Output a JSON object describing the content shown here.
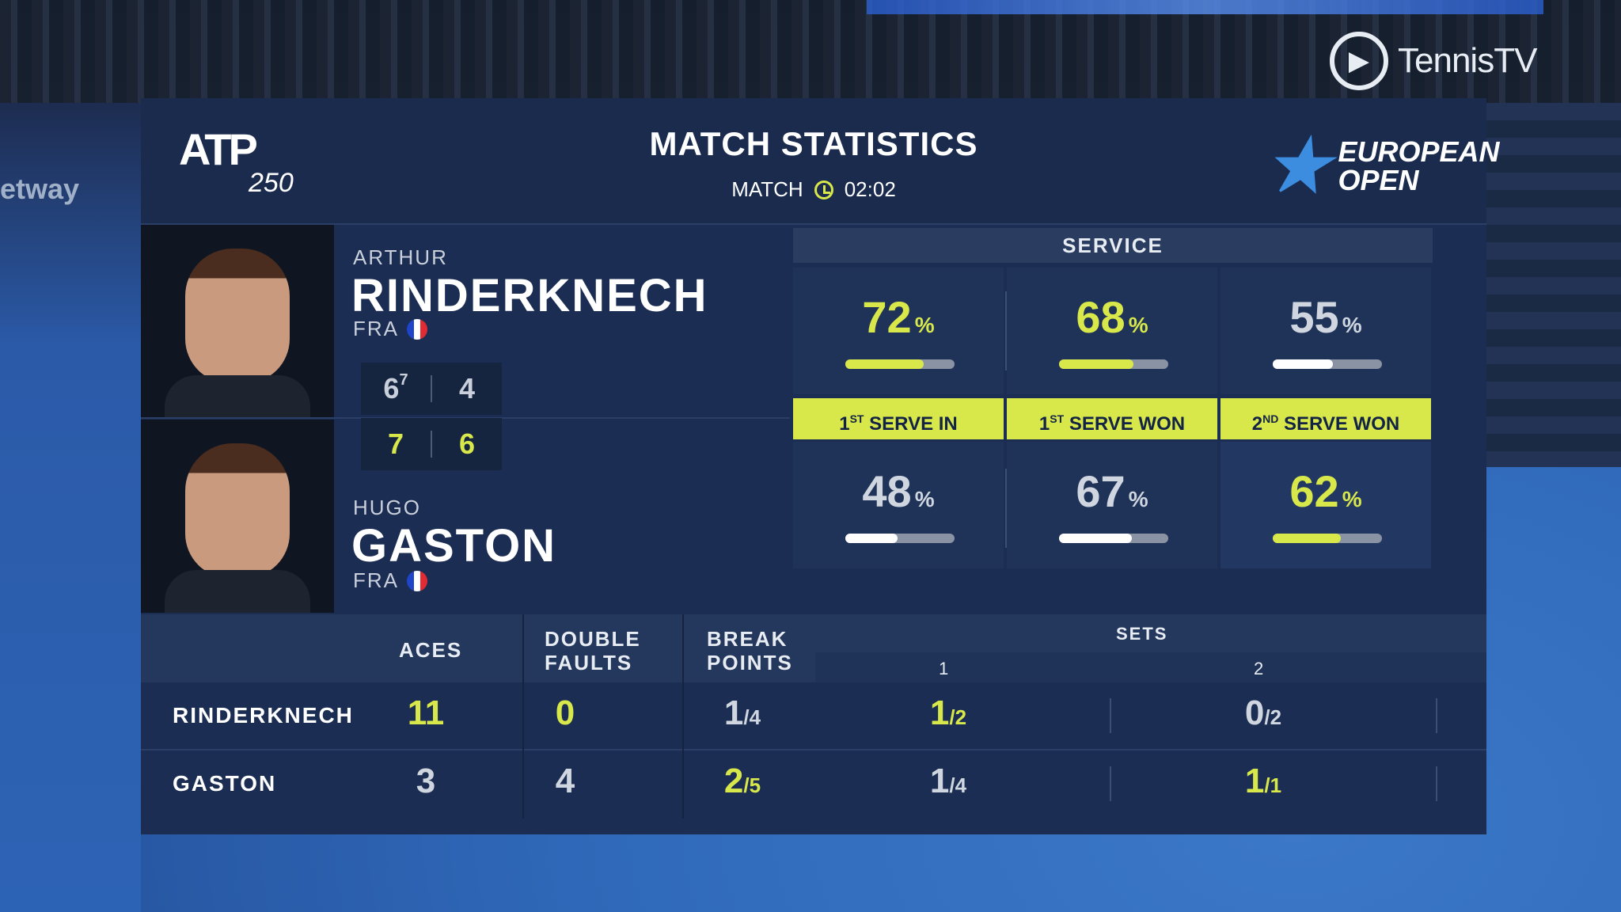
{
  "broadcaster": {
    "name": "TennisTV"
  },
  "venue_sign": "etway",
  "header": {
    "tour_logo": "ATP",
    "tour_level": "250",
    "title": "MATCH STATISTICS",
    "duration_label": "MATCH",
    "duration_value": "02:02",
    "tournament_line1": "EUROPEAN",
    "tournament_line2": "OPEN",
    "clock_icon": "clock-icon"
  },
  "players": [
    {
      "first": "ARTHUR",
      "last": "RINDERKNECH",
      "nat": "FRA",
      "set1": "6",
      "set1_tb": "7",
      "set2": "4",
      "color": "#c9d0dc"
    },
    {
      "first": "HUGO",
      "last": "GASTON",
      "nat": "FRA",
      "set1": "7",
      "set2": "6",
      "color": "#d8e84b"
    }
  ],
  "service": {
    "title": "SERVICE",
    "labels": [
      {
        "pre": "1",
        "sup": "ST",
        "post": " SERVE IN"
      },
      {
        "pre": "1",
        "sup": "ST",
        "post": " SERVE WON"
      },
      {
        "pre": "2",
        "sup": "ND",
        "post": " SERVE WON"
      }
    ],
    "p1": [
      {
        "value": "72",
        "unit": "%",
        "pct": 0.72,
        "leader": true
      },
      {
        "value": "68",
        "unit": "%",
        "pct": 0.68,
        "leader": true
      },
      {
        "value": "55",
        "unit": "%",
        "pct": 0.55,
        "leader": false
      }
    ],
    "p2": [
      {
        "value": "48",
        "unit": "%",
        "pct": 0.48,
        "leader": false
      },
      {
        "value": "67",
        "unit": "%",
        "pct": 0.67,
        "leader": false
      },
      {
        "value": "62",
        "unit": "%",
        "pct": 0.62,
        "leader": true
      }
    ]
  },
  "table": {
    "aces_label": "ACES",
    "df_label_1": "DOUBLE",
    "df_label_2": "FAULTS",
    "bp_label_1": "BREAK",
    "bp_label_2": "POINTS",
    "sets_label": "SETS",
    "set_cols": [
      "1",
      "2"
    ],
    "rows": [
      {
        "name": "RINDERKNECH",
        "aces": "11",
        "df": "0",
        "bp_won": "1",
        "bp_total": "/4",
        "s1_won": "1",
        "s1_total": "/2",
        "s2_won": "0",
        "s2_total": "/2"
      },
      {
        "name": "GASTON",
        "aces": "3",
        "df": "4",
        "bp_won": "2",
        "bp_total": "/5",
        "s1_won": "1",
        "s1_total": "/4",
        "s2_won": "1",
        "s2_total": "/1"
      }
    ]
  },
  "colors": {
    "accent": "#d8e84b",
    "panel": "#1b2d52",
    "court": "#2f68b8"
  }
}
